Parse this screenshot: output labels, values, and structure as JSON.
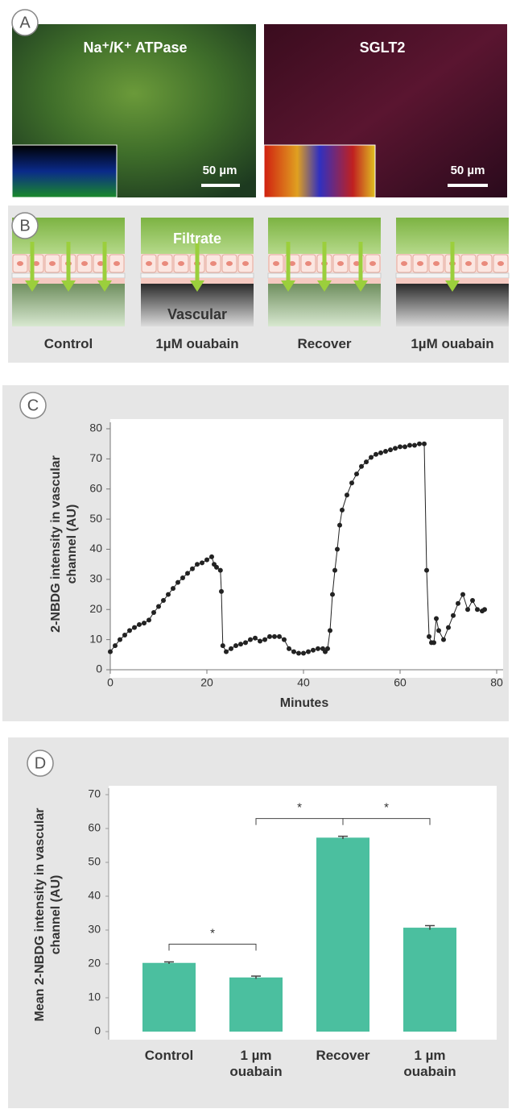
{
  "panel_a": {
    "label": "A",
    "images": [
      {
        "title": "Na⁺/K⁺ ATPase",
        "scale_bar": "50 µm"
      },
      {
        "title": "SGLT2",
        "scale_bar": "50 µm"
      }
    ]
  },
  "panel_b": {
    "label": "B",
    "filtrate": "Filtrate",
    "vascular": "Vascular",
    "conditions": [
      "Control",
      "1µM ouabain",
      "Recover",
      "1µM ouabain"
    ]
  },
  "chart_data": [
    {
      "panel": "C",
      "type": "line",
      "ylabel": "2-NBDG intensity in vascular channel (AU)",
      "xlabel": "Minutes",
      "x": [
        0,
        1,
        2,
        3,
        4,
        5,
        6,
        7,
        8,
        9,
        10,
        11,
        12,
        13,
        14,
        15,
        16,
        17,
        18,
        19,
        20,
        21,
        21.5,
        22,
        22.8,
        23,
        23.3,
        24,
        25,
        26,
        27,
        28,
        29,
        30,
        31,
        32,
        33,
        34,
        35,
        36,
        37,
        38,
        39,
        40,
        41,
        42,
        43,
        44,
        44.5,
        45,
        45.5,
        46,
        46.5,
        47,
        47.5,
        48,
        49,
        50,
        51,
        52,
        53,
        54,
        55,
        56,
        57,
        58,
        59,
        60,
        61,
        62,
        63,
        64,
        65,
        65.5,
        66,
        66.5,
        67,
        67.5,
        68,
        69,
        70,
        71,
        72,
        73,
        74,
        75,
        76,
        77,
        77.5
      ],
      "series": [
        {
          "color": "#222222",
          "values": [
            6,
            8,
            10,
            11.5,
            13,
            14,
            15,
            15.5,
            16.5,
            19,
            21,
            23,
            25,
            27,
            29,
            30.5,
            32,
            33.5,
            35,
            35.5,
            36.5,
            37.5,
            35,
            34,
            33,
            26,
            8,
            6,
            7,
            8,
            8.5,
            9,
            10,
            10.5,
            9.5,
            10,
            11,
            11,
            11,
            10,
            7,
            6,
            5.5,
            5.5,
            6,
            6.5,
            7,
            7,
            6,
            7,
            13,
            25,
            33,
            40,
            48,
            53,
            58,
            62,
            65,
            67.5,
            69,
            70.5,
            71.5,
            72,
            72.5,
            73,
            73.5,
            74,
            74,
            74.5,
            74.5,
            75,
            75,
            33,
            11,
            9,
            9,
            17,
            13,
            10,
            14,
            18,
            22,
            25,
            20,
            23,
            20,
            19.5,
            20
          ]
        }
      ],
      "xlim": [
        0,
        80
      ],
      "xticks": [
        0,
        20,
        40,
        60,
        80
      ],
      "ylim": [
        0,
        80
      ],
      "yticks": [
        0,
        10,
        20,
        30,
        40,
        50,
        60,
        70,
        80
      ]
    },
    {
      "panel": "D",
      "type": "bar",
      "ylabel": "Mean 2-NBDG intensity in vascular channel (AU)",
      "categories": [
        "Control",
        "1 µm ouabain",
        "Recover",
        "1 µm ouabain"
      ],
      "values": [
        20.3,
        16,
        57.3,
        30.7
      ],
      "errors": [
        0.3,
        0.4,
        0.4,
        0.6
      ],
      "color": "#4bbf9f",
      "ylim": [
        0,
        70
      ],
      "yticks": [
        0,
        10,
        20,
        30,
        40,
        50,
        60,
        70
      ],
      "significance": [
        {
          "from": 0,
          "to": 1,
          "label": "*"
        },
        {
          "from": 1,
          "to": 2,
          "label": "*"
        },
        {
          "from": 2,
          "to": 3,
          "label": "*"
        }
      ]
    }
  ]
}
